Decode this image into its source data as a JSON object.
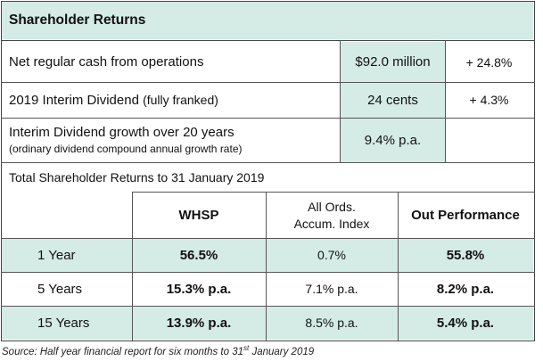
{
  "title": "Shareholder Returns",
  "top_rows": [
    {
      "label": "Net regular cash from operations",
      "note": "",
      "value": "$92.0 million",
      "change": "+ 24.8%"
    },
    {
      "label": "2019 Interim Dividend",
      "note": "(fully franked)",
      "value": "24 cents",
      "change": "+ 4.3%"
    },
    {
      "label": "Interim Dividend growth over 20 years",
      "note": "(ordinary dividend compound annual growth rate)",
      "value": "9.4% p.a.",
      "change": ""
    }
  ],
  "tsr_heading": "Total Shareholder Returns to 31 January 2019",
  "columns": {
    "whsp": "WHSP",
    "index_line1": "All Ords.",
    "index_line2": "Accum. Index",
    "out": "Out Performance"
  },
  "rows": [
    {
      "period": "1 Year",
      "whsp": "56.5%",
      "index": "0.7%",
      "out": "55.8%"
    },
    {
      "period": "5 Years",
      "whsp": "15.3% p.a.",
      "index": "7.1% p.a.",
      "out": "8.2% p.a."
    },
    {
      "period": "15 Years",
      "whsp": "13.9% p.a.",
      "index": "8.5% p.a.",
      "out": "5.4% p.a."
    }
  ],
  "source": {
    "text": "Source: Half year financial report for six months to 31",
    "superscript": "st",
    "suffix": " January 2019"
  },
  "colors": {
    "highlight": "#d5ebe5",
    "border": "#444444"
  }
}
